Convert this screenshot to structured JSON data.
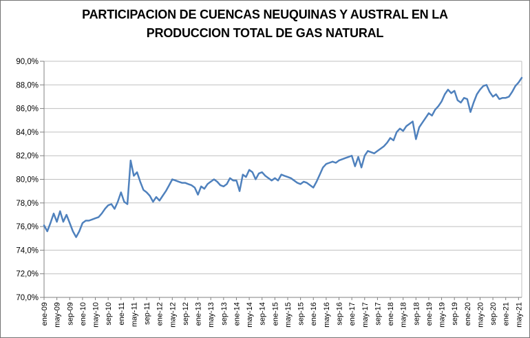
{
  "page": {
    "background": "#FFFFFF",
    "border_color": "#737373"
  },
  "title": {
    "line1": "PARTICIPACION DE CUENCAS NEUQUINAS Y AUSTRAL EN LA",
    "line2": "PRODUCCION TOTAL DE GAS NATURAL"
  },
  "chart_data": {
    "type": "line",
    "title": "PARTICIPACION DE CUENCAS NEUQUINAS Y AUSTRAL EN LA PRODUCCION TOTAL DE GAS NATURAL",
    "xlabel": "",
    "ylabel": "",
    "ylim": [
      70,
      90
    ],
    "y_tick_step": 2,
    "y_tick_labels": [
      "90,0%",
      "88,0%",
      "86,0%",
      "84,0%",
      "82,0%",
      "80,0%",
      "78,0%",
      "76,0%",
      "74,0%",
      "72,0%",
      "70,0%"
    ],
    "x_tick_labels": [
      "ene-09",
      "may-09",
      "sep-09",
      "ene-10",
      "may-10",
      "sep-10",
      "ene-11",
      "may-11",
      "sep-11",
      "ene-12",
      "may-12",
      "sep-12",
      "ene-13",
      "may-13",
      "sep-13",
      "ene-14",
      "may-14",
      "sep-14",
      "ene-15",
      "may-15",
      "sep-15",
      "ene-16",
      "may-16",
      "sep-16",
      "ene-17",
      "may-17",
      "sep-17",
      "ene-18",
      "may-18",
      "sep-18",
      "ene-19",
      "may-19",
      "sep-19",
      "ene-20",
      "may-20",
      "sep-20",
      "ene-21",
      "may-21"
    ],
    "x_tick_every": 4,
    "x_unit": "month",
    "n_points": 150,
    "grid": true,
    "legend": false,
    "line_color": "#4F81BD",
    "gridline_color": "#BFBFBF",
    "axis_color": "#808080",
    "series": [
      {
        "values": [
          76.1,
          75.6,
          76.3,
          77.1,
          76.4,
          77.3,
          76.4,
          77.0,
          76.3,
          75.6,
          75.1,
          75.6,
          76.3,
          76.5,
          76.5,
          76.6,
          76.7,
          76.8,
          77.1,
          77.5,
          77.8,
          77.9,
          77.5,
          78.1,
          78.9,
          78.1,
          77.9,
          81.6,
          80.3,
          80.6,
          79.8,
          79.1,
          78.9,
          78.6,
          78.1,
          78.5,
          78.2,
          78.6,
          79.0,
          79.5,
          80.0,
          79.9,
          79.8,
          79.7,
          79.7,
          79.6,
          79.5,
          79.3,
          78.7,
          79.4,
          79.2,
          79.6,
          79.8,
          80.0,
          79.8,
          79.5,
          79.4,
          79.6,
          80.1,
          79.9,
          79.9,
          79.0,
          80.4,
          80.2,
          80.8,
          80.6,
          80.0,
          80.5,
          80.6,
          80.3,
          80.1,
          79.9,
          80.1,
          79.9,
          80.4,
          80.3,
          80.2,
          80.1,
          79.9,
          79.7,
          79.6,
          79.8,
          79.7,
          79.5,
          79.3,
          79.8,
          80.4,
          81.0,
          81.3,
          81.4,
          81.5,
          81.4,
          81.6,
          81.7,
          81.8,
          81.9,
          82.0,
          81.1,
          81.9,
          81.0,
          82.0,
          82.4,
          82.3,
          82.2,
          82.4,
          82.6,
          82.8,
          83.1,
          83.5,
          83.3,
          84.0,
          84.3,
          84.1,
          84.5,
          84.7,
          84.9,
          83.4,
          84.4,
          84.8,
          85.2,
          85.6,
          85.4,
          85.9,
          86.2,
          86.6,
          87.2,
          87.6,
          87.3,
          87.5,
          86.7,
          86.5,
          86.9,
          86.8,
          85.7,
          86.5,
          87.2,
          87.6,
          87.9,
          88.0,
          87.4,
          87.0,
          87.2,
          86.8,
          86.9,
          86.9,
          87.0,
          87.4,
          87.9,
          88.2,
          88.6
        ]
      }
    ]
  }
}
